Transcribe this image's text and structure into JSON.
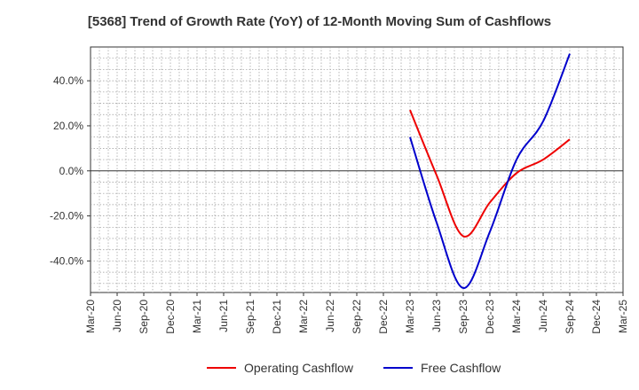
{
  "chart_data": {
    "type": "line",
    "title": "[5368]  Trend of Growth Rate (YoY) of 12-Month Moving Sum of Cashflows",
    "xlabel": "",
    "ylabel": "",
    "x_ticks": [
      "Mar-20",
      "Jun-20",
      "Sep-20",
      "Dec-20",
      "Mar-21",
      "Jun-21",
      "Sep-21",
      "Dec-21",
      "Mar-22",
      "Jun-22",
      "Sep-22",
      "Dec-22",
      "Mar-23",
      "Jun-23",
      "Sep-23",
      "Dec-23",
      "Mar-24",
      "Jun-24",
      "Sep-24",
      "Dec-24",
      "Mar-25"
    ],
    "y_ticks": [
      "40.0%",
      "20.0%",
      "0.0%",
      "-20.0%",
      "-40.0%"
    ],
    "y_tick_values": [
      40,
      20,
      0,
      -20,
      -40
    ],
    "ylim": [
      -54,
      55
    ],
    "grid": true,
    "legend_position": "bottom",
    "series": [
      {
        "name": "Operating Cashflow",
        "color": "#ee0000",
        "x": [
          "Mar-23",
          "Jun-23",
          "Sep-23",
          "Dec-23",
          "Mar-24",
          "Jun-24",
          "Sep-24"
        ],
        "values": [
          27,
          -2,
          -29,
          -14,
          -1,
          5,
          14
        ]
      },
      {
        "name": "Free Cashflow",
        "color": "#0000cc",
        "x": [
          "Mar-23",
          "Jun-23",
          "Sep-23",
          "Dec-23",
          "Mar-24",
          "Jun-24",
          "Sep-24"
        ],
        "values": [
          15,
          -23,
          -52,
          -27,
          5,
          22,
          52
        ]
      }
    ]
  }
}
